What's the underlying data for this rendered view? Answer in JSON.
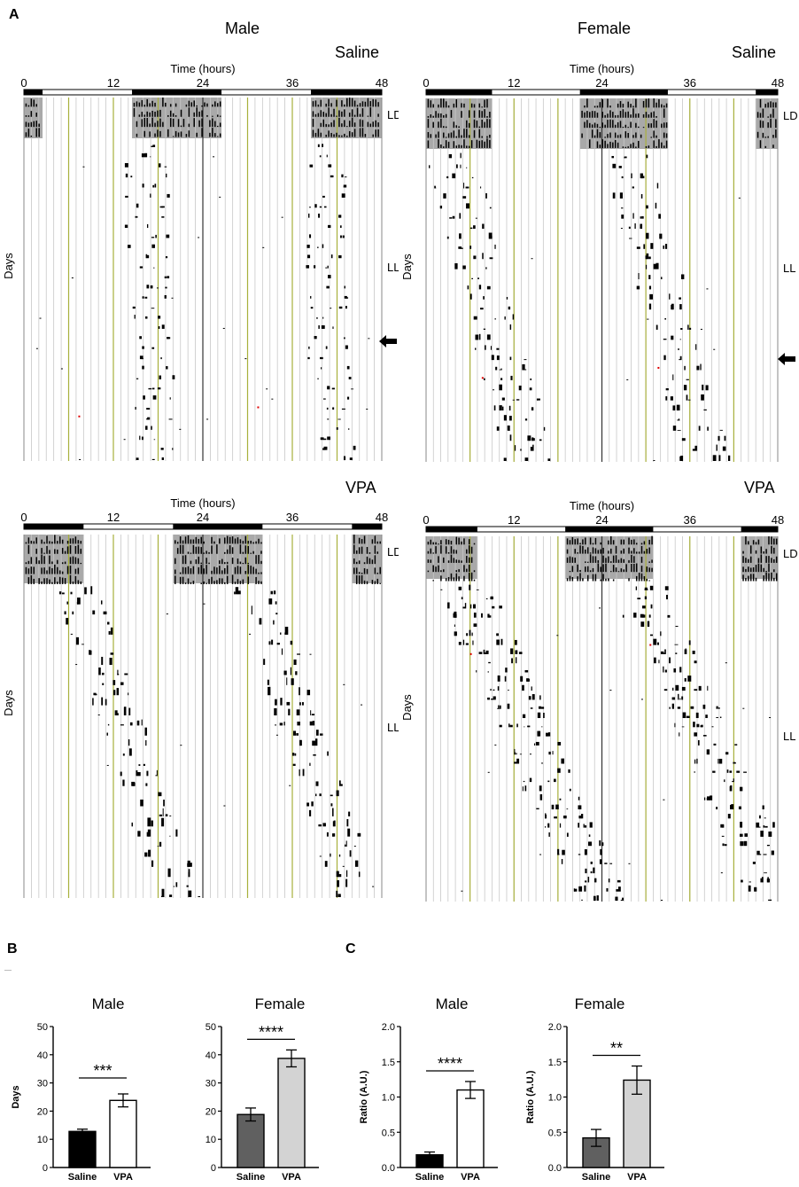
{
  "panel_letters": {
    "a": "A",
    "b": "B",
    "c": "C"
  },
  "actogram_titles": {
    "male": "Male",
    "female": "Female",
    "saline": "Saline",
    "vpa": "VPA"
  },
  "actogram_common": {
    "time_label": "Time (hours)",
    "ticks": [
      "0",
      "12",
      "24",
      "36",
      "48"
    ],
    "ylabel": "Days",
    "ld_label": "LD",
    "ll_label": "LL"
  },
  "chart_data": [
    {
      "type": "bar",
      "panel": "B",
      "title": "Male",
      "ylabel": "Days",
      "ylim": [
        0,
        50
      ],
      "yticks": [
        0,
        10,
        20,
        30,
        40,
        50
      ],
      "categories": [
        "Saline",
        "VPA"
      ],
      "values": [
        12.8,
        23.8
      ],
      "errors": [
        0.8,
        2.3
      ],
      "colors": [
        "#000000",
        "#ffffff"
      ],
      "significance": "***"
    },
    {
      "type": "bar",
      "panel": "B",
      "title": "Female",
      "ylabel": "",
      "ylim": [
        0,
        50
      ],
      "yticks": [
        0,
        10,
        20,
        30,
        40,
        50
      ],
      "categories": [
        "Saline",
        "VPA"
      ],
      "values": [
        18.8,
        38.7
      ],
      "errors": [
        2.3,
        3.0
      ],
      "colors": [
        "#606060",
        "#d3d3d3"
      ],
      "significance": "****"
    },
    {
      "type": "bar",
      "panel": "C",
      "title": "Male",
      "ylabel": "Ratio (A.U.)",
      "ylim": [
        0,
        2.0
      ],
      "yticks": [
        "0.0",
        "0.5",
        "1.0",
        "1.5",
        "2.0"
      ],
      "categories": [
        "Saline",
        "VPA"
      ],
      "values": [
        0.18,
        1.1
      ],
      "errors": [
        0.04,
        0.12
      ],
      "colors": [
        "#000000",
        "#ffffff"
      ],
      "significance": "****"
    },
    {
      "type": "bar",
      "panel": "C",
      "title": "Female",
      "ylabel": "Ratio (A.U.)",
      "ylim": [
        0,
        2.0
      ],
      "yticks": [
        "0.0",
        "0.5",
        "1.0",
        "1.5",
        "2.0"
      ],
      "categories": [
        "Saline",
        "VPA"
      ],
      "values": [
        0.42,
        1.24
      ],
      "errors": [
        0.12,
        0.2
      ],
      "colors": [
        "#606060",
        "#d3d3d3"
      ],
      "significance": "**"
    }
  ]
}
